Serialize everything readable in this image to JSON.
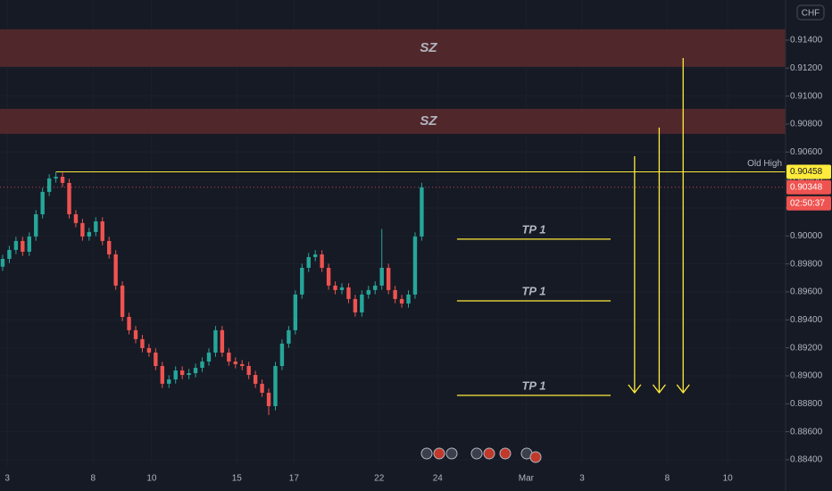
{
  "chart_data": {
    "type": "candlestick",
    "currency": "CHF",
    "x": [
      0,
      1,
      2,
      3,
      4,
      5,
      6,
      7,
      8,
      9,
      10,
      11,
      12,
      13,
      14,
      15,
      16,
      17,
      18,
      19,
      20,
      21,
      22,
      23,
      24,
      25,
      26,
      27,
      28,
      29,
      30,
      31,
      32,
      33,
      34,
      35,
      36,
      37,
      38,
      39,
      40,
      41,
      42,
      43,
      44,
      45,
      46,
      47,
      48,
      49,
      50,
      51,
      52,
      53,
      54,
      55,
      56,
      57,
      58,
      59,
      60,
      61,
      62,
      63
    ],
    "open": [
      0.8978,
      0.89836,
      0.899,
      0.89964,
      0.89887,
      0.89996,
      0.90155,
      0.90315,
      0.90411,
      0.90423,
      0.90379,
      0.90155,
      0.90092,
      0.89996,
      0.90028,
      0.90104,
      0.89964,
      0.89868,
      0.89645,
      0.89421,
      0.89326,
      0.89262,
      0.89198,
      0.89166,
      0.8907,
      0.88943,
      0.88974,
      0.89038,
      0.89006,
      0.89019,
      0.89057,
      0.89102,
      0.89166,
      0.89326,
      0.89166,
      0.89102,
      0.89083,
      0.8907,
      0.89006,
      0.88943,
      0.88879,
      0.88783,
      0.8907,
      0.8923,
      0.89326,
      0.89581,
      0.89772,
      0.89849,
      0.89868,
      0.89772,
      0.89645,
      0.89613,
      0.89632,
      0.89549,
      0.89453,
      0.89581,
      0.89613,
      0.89645,
      0.89772,
      0.89613,
      0.89549,
      0.89517,
      0.89581,
      0.89996
    ],
    "high": [
      0.89866,
      0.8993,
      0.89994,
      0.89994,
      0.90026,
      0.90185,
      0.90345,
      0.90441,
      0.90458,
      0.90453,
      0.90409,
      0.90185,
      0.90122,
      0.90058,
      0.90134,
      0.90134,
      0.89994,
      0.89898,
      0.89675,
      0.89451,
      0.89356,
      0.89292,
      0.89228,
      0.89196,
      0.891,
      0.89004,
      0.89068,
      0.89068,
      0.89049,
      0.89087,
      0.89132,
      0.89196,
      0.89356,
      0.89356,
      0.89196,
      0.89132,
      0.89113,
      0.891,
      0.89036,
      0.88973,
      0.88909,
      0.891,
      0.8926,
      0.89356,
      0.89611,
      0.89802,
      0.89879,
      0.89898,
      0.89898,
      0.89802,
      0.89675,
      0.89662,
      0.89662,
      0.89579,
      0.89611,
      0.89643,
      0.89675,
      0.9005,
      0.89802,
      0.89643,
      0.89579,
      0.89611,
      0.90026,
      0.9038
    ],
    "low": [
      0.8975,
      0.89806,
      0.8987,
      0.89857,
      0.89857,
      0.89966,
      0.90125,
      0.90285,
      0.90381,
      0.90349,
      0.90125,
      0.90062,
      0.89966,
      0.89966,
      0.89998,
      0.89934,
      0.89838,
      0.89615,
      0.89391,
      0.89296,
      0.89232,
      0.89168,
      0.89136,
      0.8904,
      0.88913,
      0.88913,
      0.88944,
      0.88976,
      0.88976,
      0.88989,
      0.89027,
      0.89072,
      0.89136,
      0.89136,
      0.89072,
      0.89053,
      0.8904,
      0.88976,
      0.88913,
      0.88849,
      0.88719,
      0.88753,
      0.8904,
      0.892,
      0.89296,
      0.89551,
      0.89742,
      0.89819,
      0.89742,
      0.89615,
      0.89583,
      0.89583,
      0.89519,
      0.89423,
      0.89423,
      0.89551,
      0.89583,
      0.89615,
      0.89583,
      0.89519,
      0.89487,
      0.89487,
      0.89551,
      0.89966
    ],
    "close": [
      0.89836,
      0.899,
      0.89964,
      0.89887,
      0.89996,
      0.90155,
      0.90315,
      0.90411,
      0.90423,
      0.90379,
      0.90155,
      0.90092,
      0.89996,
      0.90028,
      0.90104,
      0.89964,
      0.89868,
      0.89645,
      0.89421,
      0.89326,
      0.89262,
      0.89198,
      0.89166,
      0.8907,
      0.88943,
      0.88974,
      0.89038,
      0.89006,
      0.89019,
      0.89057,
      0.89102,
      0.89166,
      0.89326,
      0.89166,
      0.89102,
      0.89083,
      0.8907,
      0.89006,
      0.88943,
      0.88879,
      0.88783,
      0.8907,
      0.8923,
      0.89326,
      0.89581,
      0.89772,
      0.89849,
      0.89868,
      0.89772,
      0.89645,
      0.89613,
      0.89632,
      0.89549,
      0.89453,
      0.89581,
      0.89613,
      0.89645,
      0.89772,
      0.89613,
      0.89549,
      0.89517,
      0.89581,
      0.89996,
      0.90348
    ],
    "up_color": "#26a69a",
    "down_color": "#ef5350",
    "xlim": [
      -0.4,
      117.7
    ],
    "ylim": [
      0.88355,
      0.91687
    ],
    "xticks": [
      {
        "value": 0.7,
        "label": "3"
      },
      {
        "value": 13.6,
        "label": "8"
      },
      {
        "value": 22.4,
        "label": "10"
      },
      {
        "value": 35.2,
        "label": "15"
      },
      {
        "value": 43.8,
        "label": "17"
      },
      {
        "value": 56.6,
        "label": "22"
      },
      {
        "value": 65.4,
        "label": "24"
      },
      {
        "value": 78.7,
        "label": "Mar"
      },
      {
        "value": 87.1,
        "label": "3"
      },
      {
        "value": 99.9,
        "label": "8"
      },
      {
        "value": 109,
        "label": "10"
      }
    ],
    "yticks": [
      {
        "value": 0.884,
        "label": "0.88400"
      },
      {
        "value": 0.886,
        "label": "0.88600"
      },
      {
        "value": 0.888,
        "label": "0.88800"
      },
      {
        "value": 0.89,
        "label": "0.89000"
      },
      {
        "value": 0.892,
        "label": "0.89200"
      },
      {
        "value": 0.894,
        "label": "0.89400"
      },
      {
        "value": 0.896,
        "label": "0.89600"
      },
      {
        "value": 0.898,
        "label": "0.89800"
      },
      {
        "value": 0.9,
        "label": "0.90000"
      },
      {
        "value": 0.902,
        "label": "0.90200"
      },
      {
        "value": 0.904,
        "label": "0.90400"
      },
      {
        "value": 0.906,
        "label": "0.90600"
      },
      {
        "value": 0.908,
        "label": "0.90800"
      },
      {
        "value": 0.91,
        "label": "0.91000"
      },
      {
        "value": 0.912,
        "label": "0.91200"
      },
      {
        "value": 0.914,
        "label": "0.91400"
      }
    ],
    "zones": [
      {
        "label": "SZ",
        "low": 0.91209,
        "high": 0.91477,
        "color": "#5b2a2d"
      },
      {
        "label": "SZ",
        "low": 0.9073,
        "high": 0.90909,
        "color": "#5b2a2d"
      }
    ],
    "old_high": {
      "label": "Old High",
      "value": 0.90458,
      "x": [
        8,
        117.7
      ],
      "color": "#ffeb3b"
    },
    "targets": [
      {
        "label": "TP 1",
        "value": 0.89977,
        "x": [
          68.3,
          91.4
        ]
      },
      {
        "label": "TP 1",
        "value": 0.89536,
        "x": [
          68.3,
          91.4
        ]
      },
      {
        "label": "TP 1",
        "value": 0.8886,
        "x": [
          68.3,
          91.4
        ]
      }
    ],
    "arrows": [
      {
        "x": 95,
        "from": 0.9057,
        "to": 0.88879
      },
      {
        "x": 98.7,
        "from": 0.90775,
        "to": 0.88879
      },
      {
        "x": 102.3,
        "from": 0.91272,
        "to": 0.88879
      }
    ],
    "annotation_color": "#ffeb3b",
    "price_labels": [
      {
        "value": 0.90458,
        "color": "#ffeb3b",
        "text_color": "#131722"
      },
      {
        "value": 0.90348,
        "color": "#ef5350",
        "text_color": "#ffffff"
      }
    ],
    "countdown": "02:50:37"
  }
}
